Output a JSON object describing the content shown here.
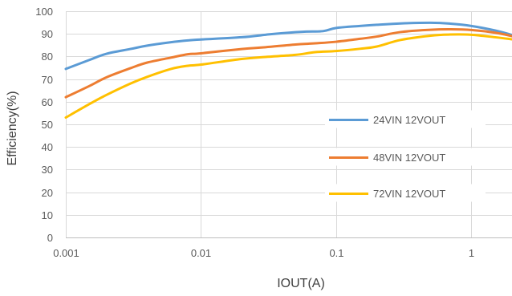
{
  "chart_data": {
    "type": "line",
    "title": "",
    "xlabel": "IOUT(A)",
    "ylabel": "Efficiency(%)",
    "x_scale": "log",
    "xlim": [
      0.001,
      2
    ],
    "ylim": [
      0,
      100
    ],
    "x_ticks": [
      0.001,
      0.01,
      0.1,
      1
    ],
    "x_tick_labels": [
      "0.001",
      "0.01",
      "0.1",
      "1"
    ],
    "y_ticks": [
      0,
      10,
      20,
      30,
      40,
      50,
      60,
      70,
      80,
      90,
      100
    ],
    "y_tick_labels": [
      "0",
      "10",
      "20",
      "30",
      "40",
      "50",
      "60",
      "70",
      "80",
      "90",
      "100"
    ],
    "grid": true,
    "legend_position": "right, inside plot",
    "series": [
      {
        "name": "24VIN 12VOUT",
        "color": "#5B9BD5",
        "points": [
          [
            0.001,
            74.5
          ],
          [
            0.0015,
            78.5
          ],
          [
            0.002,
            81.2
          ],
          [
            0.003,
            83.3
          ],
          [
            0.004,
            84.8
          ],
          [
            0.006,
            86.3
          ],
          [
            0.008,
            87.1
          ],
          [
            0.01,
            87.5
          ],
          [
            0.02,
            88.5
          ],
          [
            0.03,
            89.6
          ],
          [
            0.04,
            90.3
          ],
          [
            0.06,
            91.0
          ],
          [
            0.08,
            91.2
          ],
          [
            0.1,
            92.6
          ],
          [
            0.15,
            93.5
          ],
          [
            0.2,
            94.0
          ],
          [
            0.3,
            94.6
          ],
          [
            0.5,
            94.9
          ],
          [
            0.7,
            94.5
          ],
          [
            1.0,
            93.5
          ],
          [
            1.5,
            91.5
          ],
          [
            2.0,
            89.5
          ]
        ]
      },
      {
        "name": "48VIN 12VOUT",
        "color": "#ED7D31",
        "points": [
          [
            0.001,
            62.0
          ],
          [
            0.0015,
            67.0
          ],
          [
            0.002,
            70.8
          ],
          [
            0.003,
            74.8
          ],
          [
            0.004,
            77.3
          ],
          [
            0.006,
            79.5
          ],
          [
            0.008,
            81.0
          ],
          [
            0.01,
            81.4
          ],
          [
            0.02,
            83.3
          ],
          [
            0.03,
            84.1
          ],
          [
            0.05,
            85.3
          ],
          [
            0.07,
            85.8
          ],
          [
            0.1,
            86.5
          ],
          [
            0.15,
            87.8
          ],
          [
            0.2,
            88.8
          ],
          [
            0.3,
            90.8
          ],
          [
            0.5,
            91.8
          ],
          [
            0.7,
            92.0
          ],
          [
            1.0,
            91.7
          ],
          [
            1.5,
            90.5
          ],
          [
            2.0,
            89.0
          ]
        ]
      },
      {
        "name": "72VIN 12VOUT",
        "color": "#FFC000",
        "points": [
          [
            0.001,
            53.0
          ],
          [
            0.0015,
            59.0
          ],
          [
            0.002,
            63.0
          ],
          [
            0.003,
            68.0
          ],
          [
            0.004,
            71.0
          ],
          [
            0.006,
            74.5
          ],
          [
            0.008,
            75.9
          ],
          [
            0.01,
            76.4
          ],
          [
            0.02,
            78.9
          ],
          [
            0.03,
            79.8
          ],
          [
            0.05,
            80.7
          ],
          [
            0.07,
            81.9
          ],
          [
            0.1,
            82.4
          ],
          [
            0.15,
            83.4
          ],
          [
            0.2,
            84.4
          ],
          [
            0.3,
            87.3
          ],
          [
            0.5,
            89.2
          ],
          [
            0.7,
            89.7
          ],
          [
            1.0,
            89.6
          ],
          [
            1.5,
            88.5
          ],
          [
            2.0,
            87.6
          ]
        ]
      }
    ]
  }
}
